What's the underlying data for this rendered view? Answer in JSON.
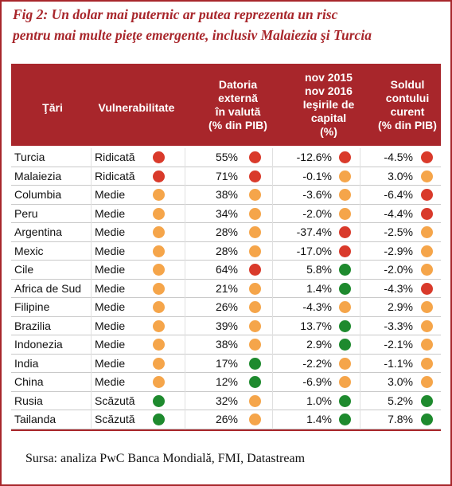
{
  "header": {
    "title_lines": [
      "Fig 2: Un dolar mai puternic ar putea reprezenta un risc",
      "pentru mai multe pieţe emergente, inclusiv Malaiezia şi Turcia"
    ]
  },
  "table": {
    "color": "#a8262b",
    "columns": [
      [
        "Ţări"
      ],
      [
        "Vulnerabilitate"
      ],
      [
        "Datoria",
        "externă",
        "în valută",
        "(% din PIB)"
      ],
      [
        "nov 2015",
        "nov 2016",
        "Ieşirile de",
        "capital",
        "(%)"
      ],
      [
        "Soldul",
        "contului",
        "curent",
        "(% din PIB)"
      ]
    ],
    "rows": [
      {
        "country": "Turcia",
        "cells": [
          [
            "Ridicată",
            "#d93a2b"
          ],
          [
            "55%",
            "#d93a2b"
          ],
          [
            "-12.6%",
            "#d93a2b"
          ],
          [
            "-4.5%",
            "#d93a2b"
          ]
        ]
      },
      {
        "country": "Malaiezia",
        "cells": [
          [
            "Ridicată",
            "#d93a2b"
          ],
          [
            "71%",
            "#d93a2b"
          ],
          [
            "-0.1%",
            "#f5a54a"
          ],
          [
            "3.0%",
            "#f5a54a"
          ]
        ]
      },
      {
        "country": "Columbia",
        "cells": [
          [
            "Medie",
            "#f5a54a"
          ],
          [
            "38%",
            "#f5a54a"
          ],
          [
            "-3.6%",
            "#f5a54a"
          ],
          [
            "-6.4%",
            "#d93a2b"
          ]
        ]
      },
      {
        "country": "Peru",
        "cells": [
          [
            "Medie",
            "#f5a54a"
          ],
          [
            "34%",
            "#f5a54a"
          ],
          [
            "-2.0%",
            "#f5a54a"
          ],
          [
            "-4.4%",
            "#d93a2b"
          ]
        ]
      },
      {
        "country": "Argentina",
        "cells": [
          [
            "Medie",
            "#f5a54a"
          ],
          [
            "28%",
            "#f5a54a"
          ],
          [
            "-37.4%",
            "#d93a2b"
          ],
          [
            "-2.5%",
            "#f5a54a"
          ]
        ]
      },
      {
        "country": "Mexic",
        "cells": [
          [
            "Medie",
            "#f5a54a"
          ],
          [
            "28%",
            "#f5a54a"
          ],
          [
            "-17.0%",
            "#d93a2b"
          ],
          [
            "-2.9%",
            "#f5a54a"
          ]
        ]
      },
      {
        "country": "Cile",
        "cells": [
          [
            "Medie",
            "#f5a54a"
          ],
          [
            "64%",
            "#d93a2b"
          ],
          [
            "5.8%",
            "#1e8a2e"
          ],
          [
            "-2.0%",
            "#f5a54a"
          ]
        ]
      },
      {
        "country": "Africa de Sud",
        "cells": [
          [
            "Medie",
            "#f5a54a"
          ],
          [
            "21%",
            "#f5a54a"
          ],
          [
            "1.4%",
            "#1e8a2e"
          ],
          [
            "-4.3%",
            "#d93a2b"
          ]
        ]
      },
      {
        "country": "Filipine",
        "cells": [
          [
            "Medie",
            "#f5a54a"
          ],
          [
            "26%",
            "#f5a54a"
          ],
          [
            "-4.3%",
            "#f5a54a"
          ],
          [
            "2.9%",
            "#f5a54a"
          ]
        ]
      },
      {
        "country": "Brazilia",
        "cells": [
          [
            "Medie",
            "#f5a54a"
          ],
          [
            "39%",
            "#f5a54a"
          ],
          [
            "13.7%",
            "#1e8a2e"
          ],
          [
            "-3.3%",
            "#f5a54a"
          ]
        ]
      },
      {
        "country": "Indonezia",
        "cells": [
          [
            "Medie",
            "#f5a54a"
          ],
          [
            "38%",
            "#f5a54a"
          ],
          [
            "2.9%",
            "#1e8a2e"
          ],
          [
            "-2.1%",
            "#f5a54a"
          ]
        ]
      },
      {
        "country": "India",
        "cells": [
          [
            "Medie",
            "#f5a54a"
          ],
          [
            "17%",
            "#1e8a2e"
          ],
          [
            "-2.2%",
            "#f5a54a"
          ],
          [
            "-1.1%",
            "#f5a54a"
          ]
        ]
      },
      {
        "country": "China",
        "cells": [
          [
            "Medie",
            "#f5a54a"
          ],
          [
            "12%",
            "#1e8a2e"
          ],
          [
            "-6.9%",
            "#f5a54a"
          ],
          [
            "3.0%",
            "#f5a54a"
          ]
        ]
      },
      {
        "country": "Rusia",
        "cells": [
          [
            "Scăzută",
            "#1e8a2e"
          ],
          [
            "32%",
            "#f5a54a"
          ],
          [
            "1.0%",
            "#1e8a2e"
          ],
          [
            "5.2%",
            "#1e8a2e"
          ]
        ]
      },
      {
        "country": "Tailanda",
        "cells": [
          [
            "Scăzută",
            "#1e8a2e"
          ],
          [
            "26%",
            "#f5a54a"
          ],
          [
            "1.4%",
            "#1e8a2e"
          ],
          [
            "7.8%",
            "#1e8a2e"
          ]
        ]
      }
    ]
  },
  "footer": {
    "source": "Sursa:  analiza PwC  Banca Mondială, FMI, Datastream"
  }
}
